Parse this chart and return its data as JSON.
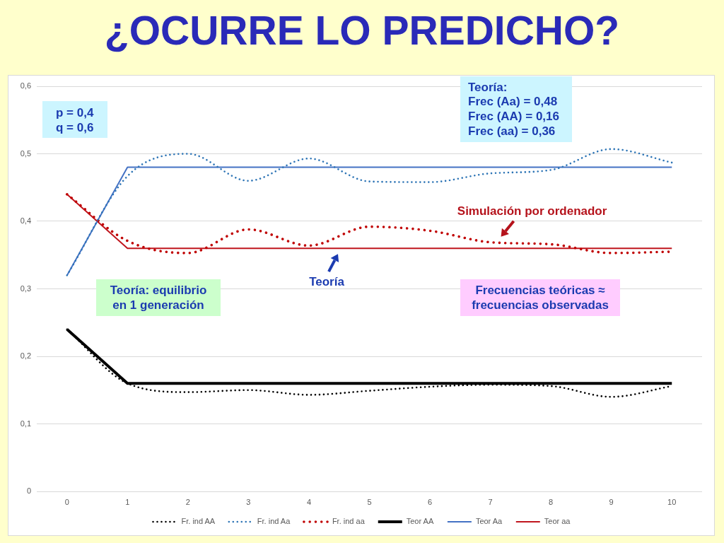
{
  "chart_data": {
    "type": "line",
    "title": "¿OCURRE LO PREDICHO?",
    "categories": [
      "0",
      "1",
      "2",
      "3",
      "4",
      "5",
      "6",
      "7",
      "8",
      "9",
      "10"
    ],
    "series": [
      {
        "name": "Fr. ind AA",
        "color": "#000000",
        "line_style": "dotted",
        "values": [
          0.24,
          0.16,
          0.147,
          0.15,
          0.143,
          0.149,
          0.155,
          0.158,
          0.156,
          0.14,
          0.156
        ]
      },
      {
        "name": "Fr. ind Aa",
        "color": "#2e75b6",
        "line_style": "dotted",
        "values": [
          0.32,
          0.467,
          0.5,
          0.46,
          0.493,
          0.459,
          0.458,
          0.471,
          0.476,
          0.507,
          0.487
        ]
      },
      {
        "name": "Fr. ind aa",
        "color": "#c00000",
        "line_style": "dotted",
        "values": [
          0.44,
          0.371,
          0.353,
          0.388,
          0.364,
          0.392,
          0.386,
          0.369,
          0.366,
          0.353,
          0.355
        ]
      },
      {
        "name": "Teor AA",
        "color": "#000000",
        "line_style": "solid",
        "values": [
          0.24,
          0.16,
          0.16,
          0.16,
          0.16,
          0.16,
          0.16,
          0.16,
          0.16,
          0.16,
          0.16
        ]
      },
      {
        "name": "Teor Aa",
        "color": "#4472c4",
        "line_style": "solid",
        "values": [
          0.32,
          0.48,
          0.48,
          0.48,
          0.48,
          0.48,
          0.48,
          0.48,
          0.48,
          0.48,
          0.48
        ]
      },
      {
        "name": "Teor aa",
        "color": "#c0161e",
        "line_style": "solid",
        "values": [
          0.44,
          0.36,
          0.36,
          0.36,
          0.36,
          0.36,
          0.36,
          0.36,
          0.36,
          0.36,
          0.36
        ]
      }
    ],
    "ylim": [
      0,
      0.6
    ],
    "yticks": [
      0,
      {
        "value": 0.1,
        "label": "0,1"
      },
      {
        "value": 0.2,
        "label": "0,2"
      },
      {
        "value": 0.3,
        "label": "0,3"
      },
      {
        "value": 0.4,
        "label": "0,4"
      },
      {
        "value": 0.5,
        "label": "0,5"
      },
      {
        "value": 0.6,
        "label": "0,6"
      }
    ],
    "grid": "y",
    "legend": "bottom",
    "marker": "none",
    "annotations": [
      "p = 0,4\nq = 0,6",
      "Teoría:\nFrec (Aa) = 0,48\nFrec (AA) = 0,16\nFrec (aa) = 0,36",
      {
        "text": "Simulación por ordenador",
        "x": "7",
        "y": 0.37
      },
      {
        "text": "Teoría",
        "y": 0.36
      },
      "Teoría: equilibrio\nen 1 generación",
      "Frecuencias teóricas ≈\nfrecuencias observadas"
    ]
  }
}
